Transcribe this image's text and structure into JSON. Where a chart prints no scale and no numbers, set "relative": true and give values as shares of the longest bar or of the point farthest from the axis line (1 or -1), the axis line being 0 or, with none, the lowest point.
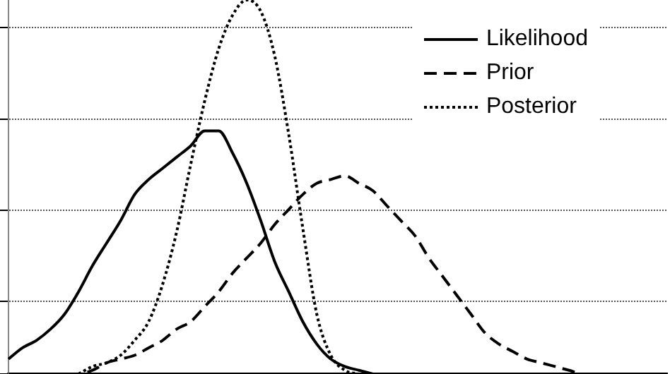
{
  "chart_data": {
    "type": "line",
    "relative": true,
    "grid": "y",
    "legend": "top right",
    "marker": "none",
    "categories": [
      null,
      null,
      null,
      null,
      null,
      null,
      null,
      null,
      null,
      null,
      null,
      null,
      null,
      null,
      null,
      null,
      null,
      null,
      null,
      null,
      null,
      null,
      null,
      null,
      null,
      null,
      null,
      null,
      null,
      null,
      null,
      null,
      null,
      null,
      null,
      null,
      null,
      null,
      null,
      null,
      null,
      null,
      null,
      null,
      null,
      null,
      null,
      null
    ],
    "series": [
      {
        "name": "Likelihood",
        "color": "#000000",
        "line_style": "solid",
        "values": [
          0.04,
          0.07,
          0.09,
          0.12,
          0.16,
          0.22,
          0.29,
          0.35,
          0.41,
          0.48,
          0.52,
          0.55,
          0.58,
          0.61,
          0.65,
          0.65,
          0.59,
          0.51,
          0.41,
          0.3,
          0.22,
          0.14,
          0.08,
          0.04,
          0.02,
          0.01,
          0,
          null,
          null,
          null,
          null,
          null,
          null,
          null,
          null,
          null,
          null,
          null,
          null,
          null,
          null,
          null,
          null,
          null,
          null,
          null,
          null,
          null
        ]
      },
      {
        "name": "Prior",
        "color": "#000000",
        "line_style": "dashed",
        "values": [
          0,
          0,
          0,
          0,
          0,
          0,
          0.01,
          0.03,
          0.04,
          0.05,
          0.07,
          0.09,
          0.12,
          0.14,
          0.18,
          0.22,
          0.27,
          0.31,
          0.35,
          0.4,
          0.44,
          0.48,
          0.51,
          0.52,
          0.53,
          0.51,
          0.49,
          0.45,
          0.41,
          0.37,
          0.31,
          0.26,
          0.21,
          0.16,
          0.11,
          0.08,
          0.06,
          0.04,
          0.03,
          0.02,
          0.01,
          0,
          0,
          0,
          0,
          0,
          0,
          0
        ]
      },
      {
        "name": "Posterior",
        "color": "#000000",
        "line_style": "dotted",
        "values": [
          null,
          null,
          null,
          null,
          null,
          0,
          0.02,
          0.03,
          0.05,
          0.09,
          0.14,
          0.24,
          0.38,
          0.56,
          0.73,
          0.87,
          0.96,
          1,
          0.97,
          0.85,
          0.64,
          0.39,
          0.16,
          0.05,
          0.01,
          0,
          null,
          null,
          null,
          null,
          null,
          null,
          null,
          null,
          null,
          null,
          null,
          null,
          null,
          null,
          null,
          null,
          null,
          null,
          null,
          null,
          null,
          null
        ]
      }
    ]
  }
}
